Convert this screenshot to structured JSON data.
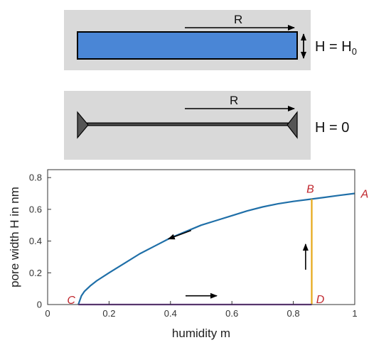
{
  "diagram": {
    "top_panel": {
      "arrow_label": "R",
      "height_label_main": "H = H",
      "height_label_sub": "0"
    },
    "bottom_panel": {
      "arrow_label": "R",
      "height_label": "H = 0"
    },
    "colors": {
      "panel_bg": "#d9d9d9",
      "pore_fill": "#4a86d6",
      "marker_fill": "#555555"
    }
  },
  "chart_data": {
    "type": "line",
    "xlabel": "humidity m",
    "ylabel": "pore width H in nm",
    "xlim": [
      0,
      1
    ],
    "ylim": [
      0,
      0.85
    ],
    "x_ticks": [
      "0",
      "0.2",
      "0.4",
      "0.6",
      "0.8",
      "1"
    ],
    "y_ticks": [
      "0",
      "0.2",
      "0.4",
      "0.6",
      "0.8"
    ],
    "x_tick_values": [
      0,
      0.2,
      0.4,
      0.6,
      0.8,
      1
    ],
    "y_tick_values": [
      0,
      0.2,
      0.4,
      0.6,
      0.8
    ],
    "grid": false,
    "series": [
      {
        "color": "#1f6fa8",
        "x": [
          0.1,
          0.11,
          0.12,
          0.14,
          0.16,
          0.2,
          0.25,
          0.3,
          0.35,
          0.4,
          0.45,
          0.5,
          0.55,
          0.6,
          0.65,
          0.7,
          0.75,
          0.8,
          0.86,
          0.9,
          0.95,
          1.0
        ],
        "y": [
          0.0,
          0.055,
          0.083,
          0.12,
          0.15,
          0.2,
          0.26,
          0.32,
          0.37,
          0.42,
          0.46,
          0.5,
          0.53,
          0.56,
          0.59,
          0.615,
          0.635,
          0.65,
          0.665,
          0.675,
          0.688,
          0.7
        ]
      },
      {
        "color": "#e6a817",
        "x": [
          0.86,
          0.86
        ],
        "y": [
          0.0,
          0.665
        ]
      },
      {
        "color": "#7a3aa3",
        "x": [
          0.1,
          0.86
        ],
        "y": [
          0.0,
          0.0
        ]
      }
    ],
    "points": [
      {
        "label": "A",
        "x": 1.0,
        "y": 0.7
      },
      {
        "label": "B",
        "x": 0.86,
        "y": 0.665
      },
      {
        "label": "C",
        "x": 0.1,
        "y": 0.0
      },
      {
        "label": "D",
        "x": 0.86,
        "y": 0.0
      }
    ],
    "arrows": [
      {
        "direction": "down-left",
        "x": 0.43,
        "y": 0.44
      },
      {
        "direction": "right",
        "x": 0.5,
        "y": 0.055
      },
      {
        "direction": "up",
        "x": 0.84,
        "y": 0.3
      }
    ]
  }
}
